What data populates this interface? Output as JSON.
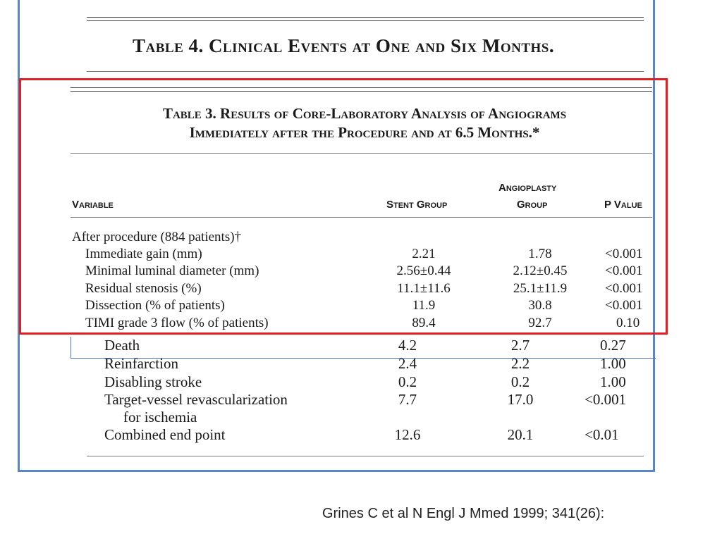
{
  "table4": {
    "title": "Table 4. Clinical Events at One and Six Months."
  },
  "table3": {
    "title_line1": "Table 3. Results of Core-Laboratory Analysis of Angiograms",
    "title_line2": "Immediately after the Procedure and at 6.5 Months.*",
    "headers": {
      "variable": "Variable",
      "stent": "Stent Group",
      "angio_line1": "Angioplasty",
      "angio_line2": "Group",
      "pvalue": "P Value"
    },
    "section": "After procedure (884 patients)†",
    "rows": [
      {
        "label": "Immediate gain (mm)",
        "stent": "2.21",
        "angio": "1.78",
        "p": "<0.001"
      },
      {
        "label": "Minimal luminal diameter (mm)",
        "stent": "2.56±0.44",
        "angio": "2.12±0.45",
        "p": "<0.001"
      },
      {
        "label": "Residual stenosis (%)",
        "stent": "11.1±11.6",
        "angio": "25.1±11.9",
        "p": "<0.001"
      },
      {
        "label": "Dissection (% of patients)",
        "stent": "11.9",
        "angio": "30.8",
        "p": "<0.001"
      },
      {
        "label": "TIMI grade 3 flow (% of patients)",
        "stent": "89.4",
        "angio": "92.7",
        "p": "0.10"
      }
    ]
  },
  "table4_rows": [
    {
      "label": "Death",
      "stent": "4.2",
      "angio": "2.7",
      "p": "0.27"
    },
    {
      "label": "Reinfarction",
      "stent": "2.4",
      "angio": "2.2",
      "p": "1.00"
    },
    {
      "label": "Disabling stroke",
      "stent": "0.2",
      "angio": "0.2",
      "p": "1.00"
    },
    {
      "label": "Target-vessel revascularization",
      "label2": "for ischemia",
      "stent": "7.7",
      "angio": "17.0",
      "p": "<0.001"
    },
    {
      "label": "Combined end point",
      "stent": "12.6",
      "angio": "20.1",
      "p": "<0.01"
    }
  ],
  "citation": "Grines C et al   N Engl J Mmed 1999; 341(26):",
  "colors": {
    "frame": "#5a86c6",
    "highlight": "#e02020"
  }
}
